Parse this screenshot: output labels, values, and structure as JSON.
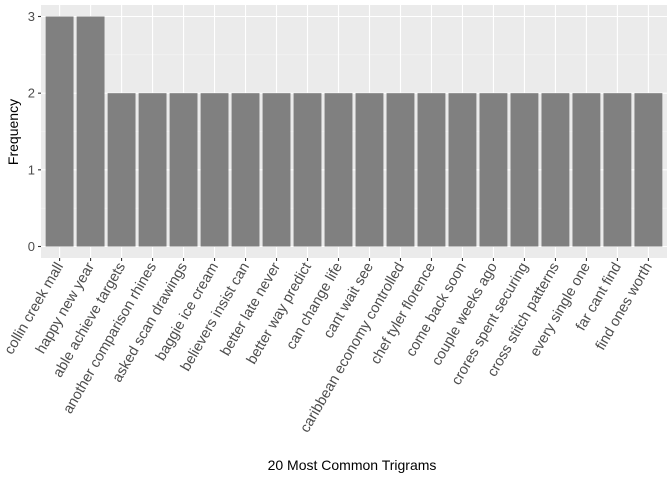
{
  "chart_data": {
    "type": "bar",
    "title": "",
    "xlabel": "20 Most Common Trigrams",
    "ylabel": "Frequency",
    "ylim": [
      0,
      3
    ],
    "yticks": [
      0,
      1,
      2,
      3
    ],
    "grid": true,
    "colors": {
      "panel": "#ebebeb",
      "grid_major": "#ffffff",
      "grid_minor": "#f5f5f5",
      "bar": "#808080",
      "tick": "#333333"
    },
    "categories": [
      "collin creek mall",
      "happy new year",
      "able achieve targets",
      "another comparison rhines",
      "asked scan drawings",
      "baggie ice cream",
      "believers insist can",
      "better late never",
      "better way predict",
      "can change life",
      "cant wait see",
      "caribbean economy controlled",
      "chef tyler florence",
      "come back soon",
      "couple weeks ago",
      "crores spent securing",
      "cross stitch patterns",
      "every single one",
      "far cant find",
      "find ones worth"
    ],
    "values": [
      3,
      3,
      2,
      2,
      2,
      2,
      2,
      2,
      2,
      2,
      2,
      2,
      2,
      2,
      2,
      2,
      2,
      2,
      2,
      2
    ]
  }
}
